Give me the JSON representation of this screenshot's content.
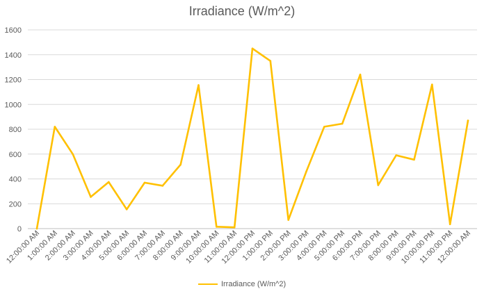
{
  "chart_data": {
    "type": "line",
    "title": "Irradiance (W/m^2)",
    "xlabel": "",
    "ylabel": "",
    "ylim": [
      0,
      1600
    ],
    "yticks": [
      0,
      200,
      400,
      600,
      800,
      1000,
      1200,
      1400,
      1600
    ],
    "grid": true,
    "legend_position": "bottom",
    "categories": [
      "12:00:00 AM",
      "1:00:00 AM",
      "2:00:00 AM",
      "3:00:00 AM",
      "4:00:00 AM",
      "5:00:00 AM",
      "6:00:00 AM",
      "7:00:00 AM",
      "8:00:00 AM",
      "9:00:00 AM",
      "10:00:00 AM",
      "11:00:00 AM",
      "12:00:00 PM",
      "1:00:00 PM",
      "2:00:00 PM",
      "3:00:00 PM",
      "4:00:00 PM",
      "5:00:00 PM",
      "6:00:00 PM",
      "7:00:00 PM",
      "8:00:00 PM",
      "9:00:00 PM",
      "10:00:00 PM",
      "11:00:00 PM",
      "12:00:00 AM"
    ],
    "series": [
      {
        "name": "Irradiance (W/m^2)",
        "color": "#ffc000",
        "values": [
          0,
          820,
          600,
          255,
          375,
          155,
          370,
          345,
          515,
          1155,
          15,
          10,
          1450,
          1350,
          70,
          460,
          820,
          845,
          1240,
          350,
          590,
          555,
          1160,
          35,
          870
        ]
      }
    ]
  }
}
